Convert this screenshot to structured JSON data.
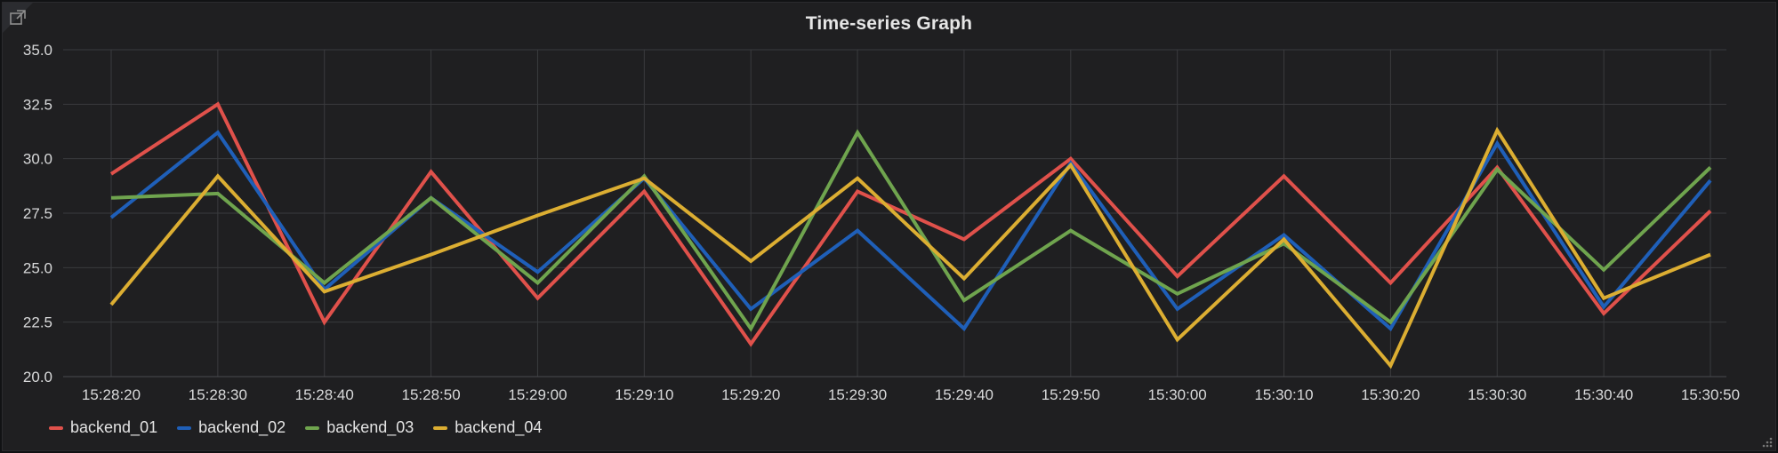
{
  "panel": {
    "title": "Time-series Graph",
    "link_icon": "external-link-icon",
    "resize_icon": "resize-handle-icon"
  },
  "colors": {
    "background": "#1f1f21",
    "grid": "#3a3b3e",
    "text": "#d8d9da",
    "backend_01": "#e0514b",
    "backend_02": "#1f5fb8",
    "backend_03": "#6fa44e",
    "backend_04": "#dcae32"
  },
  "chart_data": {
    "type": "line",
    "title": "Time-series Graph",
    "xlabel": "",
    "ylabel": "",
    "x": [
      "15:28:20",
      "15:28:30",
      "15:28:40",
      "15:28:50",
      "15:29:00",
      "15:29:10",
      "15:29:20",
      "15:29:30",
      "15:29:40",
      "15:29:50",
      "15:30:00",
      "15:30:10",
      "15:30:20",
      "15:30:30",
      "15:30:40",
      "15:30:50"
    ],
    "ylim": [
      20.0,
      35.0
    ],
    "yticks": [
      "20.0",
      "22.5",
      "25.0",
      "27.5",
      "30.0",
      "32.5",
      "35.0"
    ],
    "grid": true,
    "legend_position": "bottom-left",
    "series": [
      {
        "name": "backend_01",
        "color": "#e0514b",
        "values": [
          29.3,
          32.5,
          22.5,
          29.4,
          23.6,
          28.5,
          21.5,
          28.5,
          26.3,
          30.0,
          24.6,
          29.2,
          24.3,
          29.6,
          22.9,
          27.6
        ]
      },
      {
        "name": "backend_02",
        "color": "#1f5fb8",
        "values": [
          27.3,
          31.2,
          24.0,
          28.2,
          24.8,
          29.1,
          23.1,
          26.7,
          22.2,
          29.8,
          23.1,
          26.5,
          22.2,
          30.7,
          23.2,
          29.0
        ]
      },
      {
        "name": "backend_03",
        "color": "#6fa44e",
        "values": [
          28.2,
          28.4,
          24.3,
          28.2,
          24.3,
          29.2,
          22.2,
          31.2,
          23.5,
          26.7,
          23.8,
          26.1,
          22.5,
          29.5,
          24.9,
          29.6
        ]
      },
      {
        "name": "backend_04",
        "color": "#dcae32",
        "values": [
          23.3,
          29.2,
          23.9,
          25.6,
          27.4,
          29.1,
          25.3,
          29.1,
          24.5,
          29.7,
          21.7,
          26.3,
          20.5,
          31.3,
          23.6,
          25.6
        ]
      }
    ]
  }
}
